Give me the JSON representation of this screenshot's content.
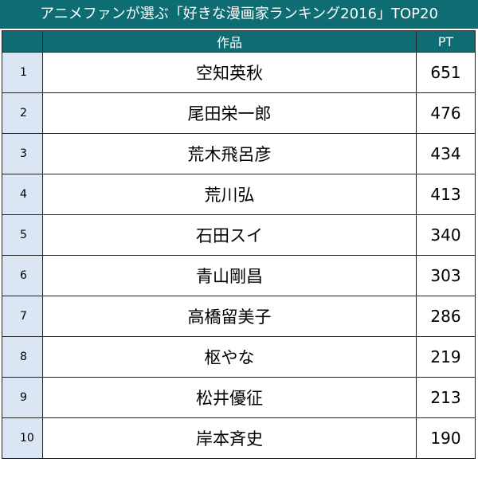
{
  "title": "アニメファンが選ぶ「好きな漫画家ランキング2016」TOP20",
  "colors": {
    "header_bg": "#0d6d73",
    "rank_cell_bg": "#dae6f3",
    "header_text": "#ffffff"
  },
  "table": {
    "headers": {
      "rank": "",
      "name": "作品",
      "pt": "PT"
    },
    "rows": [
      {
        "rank": "1",
        "name": "空知英秋",
        "pt": "651"
      },
      {
        "rank": "2",
        "name": "尾田栄一郎",
        "pt": "476"
      },
      {
        "rank": "3",
        "name": "荒木飛呂彦",
        "pt": "434"
      },
      {
        "rank": "4",
        "name": "荒川弘",
        "pt": "413"
      },
      {
        "rank": "5",
        "name": "石田スイ",
        "pt": "340"
      },
      {
        "rank": "6",
        "name": "青山剛昌",
        "pt": "303"
      },
      {
        "rank": "7",
        "name": "高橋留美子",
        "pt": "286"
      },
      {
        "rank": "8",
        "name": "枢やな",
        "pt": "219"
      },
      {
        "rank": "9",
        "name": "松井優征",
        "pt": "213"
      },
      {
        "rank": "10",
        "name": "岸本斉史",
        "pt": "190"
      }
    ]
  }
}
